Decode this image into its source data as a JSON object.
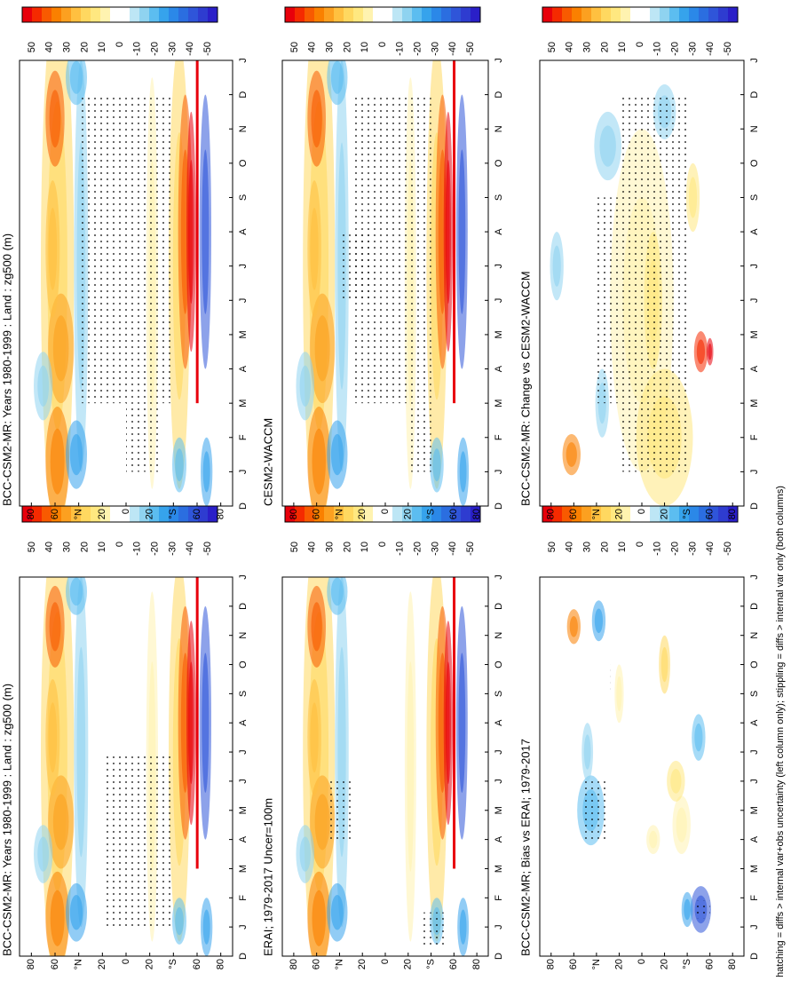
{
  "chart_data": [
    {
      "type": "contour",
      "title": "BCC-CSM2-MR: Years 1980-1999 : Land : zg500 (m)"
    },
    {
      "type": "contour",
      "title": "BCC-CSM2-MR: Years 1980-1999 : Land : zg500 (m)"
    },
    {
      "type": "contour",
      "title": "ERAI; 1979-2017 Uncer=100m"
    },
    {
      "type": "contour",
      "title": "CESM2-WACCM"
    },
    {
      "type": "contour",
      "title": "BCC-CSM2-MR; Bias vs ERAI; 1979-2017"
    },
    {
      "type": "contour",
      "title": "BCC-CSM2-MR: Change vs CESM2-WACCM"
    }
  ],
  "categories": [
    "D",
    "J",
    "F",
    "M",
    "A",
    "M",
    "J",
    "J",
    "A",
    "S",
    "O",
    "N",
    "D",
    "J"
  ],
  "ylim": [
    -90,
    90
  ],
  "yticks": [
    80,
    60,
    {
      "value": 40,
      "label": "°N"
    },
    20,
    0,
    {
      "value": -20,
      "label": "20"
    },
    {
      "value": -40,
      "label": "°S"
    },
    {
      "value": -60,
      "label": "60"
    },
    {
      "value": -80,
      "label": "80"
    }
  ],
  "colorbar": {
    "levels": [
      50,
      40,
      30,
      20,
      10,
      0,
      -10,
      -20,
      -30,
      -40,
      -50
    ],
    "colors": [
      "#e8000b",
      "#f52a00",
      "#f85a00",
      "#fa8000",
      "#fca020",
      "#ffc040",
      "#ffd860",
      "#ffe880",
      "#fff3b0",
      "#ffffff",
      "#ffffff",
      "#bde6f5",
      "#8fd3f0",
      "#5cbdf0",
      "#36a3ec",
      "#2b88e8",
      "#2b6ee0",
      "#2f55d9",
      "#2e3cd0",
      "#2a1fc8"
    ]
  },
  "footnote": "hatching = diffs > internal var+obs uncertainty (left column only); stippling = diffs > internal var only (both columns)"
}
